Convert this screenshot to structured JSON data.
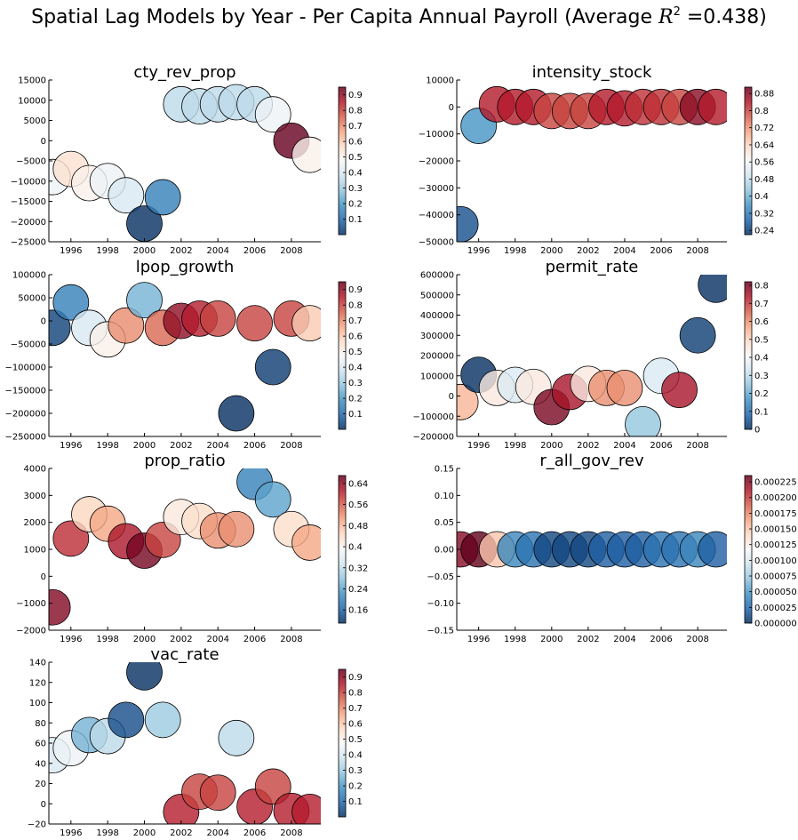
{
  "figure": {
    "title_prefix": "Spatial Lag Models by Year - Per Capita Annual Payroll  (Average ",
    "title_math": "R",
    "title_sup": "2",
    "title_suffix": " =0.438)"
  },
  "colormap": {
    "name": "RdBu_r (alpha 0.8)",
    "stops": [
      "#053061",
      "#2166ac",
      "#4393c3",
      "#92c5de",
      "#d1e5f0",
      "#f7f7f7",
      "#fddbc7",
      "#f4a582",
      "#d6604d",
      "#b2182b",
      "#67001f"
    ]
  },
  "chart_data": [
    {
      "type": "scatter",
      "title": "cty_rev_prop",
      "x": [
        1995,
        1996,
        1997,
        1998,
        1999,
        2000,
        2001,
        2002,
        2003,
        2004,
        2005,
        2006,
        2007,
        2008,
        2009
      ],
      "y": [
        -9000,
        -7000,
        -10500,
        -10000,
        -13500,
        -20500,
        -14000,
        9000,
        8500,
        9000,
        9500,
        9000,
        6500,
        0,
        -3500
      ],
      "color_values": [
        0.45,
        0.55,
        0.5,
        0.45,
        0.4,
        0.0,
        0.15,
        0.35,
        0.35,
        0.35,
        0.35,
        0.35,
        0.45,
        0.95,
        0.5
      ],
      "ylim": [
        -25000,
        15000
      ],
      "yticks": [
        -25000,
        -20000,
        -15000,
        -10000,
        -5000,
        0,
        5000,
        10000,
        15000
      ],
      "ytick_labels": [
        "−25000",
        "−20000",
        "−15000",
        "−10000",
        "−5000",
        "0",
        "5000",
        "10000",
        "15000"
      ],
      "xlim": [
        1994.8,
        2009.6
      ],
      "xticks": [
        1996,
        1998,
        2000,
        2002,
        2004,
        2006,
        2008
      ],
      "colorbar_ticks": [
        0.1,
        0.2,
        0.3,
        0.4,
        0.5,
        0.6,
        0.7,
        0.8,
        0.9
      ],
      "colorbar_range": [
        0.0,
        0.95
      ]
    },
    {
      "type": "scatter",
      "title": "intensity_stock",
      "x": [
        1995,
        1996,
        1997,
        1998,
        1999,
        2000,
        2001,
        2002,
        2003,
        2004,
        2005,
        2006,
        2007,
        2008,
        2009
      ],
      "y": [
        -43500,
        -7000,
        1000,
        0,
        0,
        -1500,
        -1500,
        -1500,
        0,
        -500,
        0,
        0,
        0,
        0,
        0
      ],
      "color_values": [
        0.26,
        0.36,
        0.84,
        0.84,
        0.84,
        0.8,
        0.8,
        0.8,
        0.84,
        0.84,
        0.82,
        0.82,
        0.8,
        0.88,
        0.84
      ],
      "ylim": [
        -50000,
        10000
      ],
      "yticks": [
        -50000,
        -40000,
        -30000,
        -20000,
        -10000,
        0,
        10000
      ],
      "ytick_labels": [
        "−50000",
        "−40000",
        "−30000",
        "−20000",
        "−10000",
        "0",
        "10000"
      ],
      "xlim": [
        1994.8,
        2009.6
      ],
      "xticks": [
        1996,
        1998,
        2000,
        2002,
        2004,
        2006,
        2008
      ],
      "colorbar_ticks": [
        0.24,
        0.32,
        0.4,
        0.48,
        0.56,
        0.64,
        0.72,
        0.8,
        0.88
      ],
      "colorbar_range": [
        0.22,
        0.91
      ]
    },
    {
      "type": "scatter",
      "title": "lpop_growth",
      "x": [
        1995,
        1996,
        1997,
        1998,
        1999,
        2000,
        2001,
        2002,
        2003,
        2004,
        2005,
        2006,
        2007,
        2008,
        2009
      ],
      "y": [
        -15000,
        40000,
        -15000,
        -40000,
        -10000,
        45000,
        -15000,
        0,
        5000,
        5000,
        -200000,
        -5000,
        -100000,
        5000,
        -5000
      ],
      "color_values": [
        0.03,
        0.15,
        0.4,
        0.5,
        0.7,
        0.25,
        0.75,
        0.9,
        0.85,
        0.8,
        0.0,
        0.8,
        0.02,
        0.8,
        0.6
      ],
      "ylim": [
        -250000,
        100000
      ],
      "yticks": [
        -250000,
        -200000,
        -150000,
        -100000,
        -50000,
        0,
        50000,
        100000
      ],
      "ytick_labels": [
        "−250000",
        "−200000",
        "−150000",
        "−100000",
        "−50000",
        "0",
        "50000",
        "100000"
      ],
      "xlim": [
        1994.8,
        2009.6
      ],
      "xticks": [
        1996,
        1998,
        2000,
        2002,
        2004,
        2006,
        2008
      ],
      "colorbar_ticks": [
        0.1,
        0.2,
        0.3,
        0.4,
        0.5,
        0.6,
        0.7,
        0.8,
        0.9
      ],
      "colorbar_range": [
        0.0,
        0.95
      ]
    },
    {
      "type": "scatter",
      "title": "permit_rate",
      "x": [
        1995,
        1996,
        1997,
        1998,
        1999,
        2000,
        2001,
        2002,
        2003,
        2004,
        2005,
        2006,
        2007,
        2008,
        2009
      ],
      "y": [
        -30000,
        105000,
        40000,
        55000,
        45000,
        -55000,
        20000,
        60000,
        40000,
        40000,
        -140000,
        100000,
        30000,
        300000,
        550000
      ],
      "color_values": [
        0.55,
        0.0,
        0.45,
        0.35,
        0.45,
        0.8,
        0.75,
        0.45,
        0.6,
        0.6,
        0.25,
        0.35,
        0.75,
        0.02,
        0.0
      ],
      "ylim": [
        -200000,
        600000
      ],
      "yticks": [
        -200000,
        -100000,
        0,
        100000,
        200000,
        300000,
        400000,
        500000,
        600000
      ],
      "ytick_labels": [
        "−200000",
        "−100000",
        "0",
        "100000",
        "200000",
        "300000",
        "400000",
        "500000",
        "600000"
      ],
      "xlim": [
        1994.8,
        2009.6
      ],
      "xticks": [
        1996,
        1998,
        2000,
        2002,
        2004,
        2006,
        2008
      ],
      "colorbar_ticks": [
        0.0,
        0.1,
        0.2,
        0.3,
        0.4,
        0.5,
        0.6,
        0.7,
        0.8
      ],
      "colorbar_range": [
        0.0,
        0.82
      ]
    },
    {
      "type": "scatter",
      "title": "prop_ratio",
      "x": [
        1995,
        1996,
        1997,
        1998,
        1999,
        2000,
        2001,
        2002,
        2003,
        2004,
        2005,
        2006,
        2007,
        2008,
        2009
      ],
      "y": [
        -1150,
        1400,
        2300,
        1950,
        1300,
        950,
        1350,
        2200,
        2050,
        1700,
        1750,
        3500,
        2850,
        1750,
        1250
      ],
      "color_values": [
        0.65,
        0.6,
        0.45,
        0.5,
        0.62,
        0.66,
        0.58,
        0.42,
        0.44,
        0.52,
        0.52,
        0.2,
        0.24,
        0.44,
        0.5
      ],
      "ylim": [
        -2000,
        4000
      ],
      "yticks": [
        -2000,
        -1000,
        0,
        1000,
        2000,
        3000,
        4000
      ],
      "ytick_labels": [
        "−2000",
        "−1000",
        "0",
        "1000",
        "2000",
        "3000",
        "4000"
      ],
      "xlim": [
        1994.8,
        2009.6
      ],
      "xticks": [
        1996,
        1998,
        2000,
        2002,
        2004,
        2006,
        2008
      ],
      "colorbar_ticks": [
        0.16,
        0.24,
        0.32,
        0.4,
        0.48,
        0.56,
        0.64
      ],
      "colorbar_range": [
        0.11,
        0.67
      ]
    },
    {
      "type": "scatter",
      "title": "r_all_gov_rev",
      "x": [
        1995,
        1996,
        1997,
        1998,
        1999,
        2000,
        2001,
        2002,
        2003,
        2004,
        2005,
        2006,
        2007,
        2008,
        2009
      ],
      "y": [
        0,
        0,
        0,
        0,
        0,
        0,
        0,
        0,
        0,
        0,
        0,
        0,
        0,
        0,
        0
      ],
      "color_values": [
        0.000225,
        0.0,
        0.00015,
        4e-05,
        3e-05,
        1e-05,
        1e-05,
        1e-05,
        2e-05,
        2e-05,
        2e-05,
        3e-05,
        3e-05,
        4e-05,
        2e-05
      ],
      "color_override": {
        "1996": "#5e0019"
      },
      "ylim": [
        -0.15,
        0.15
      ],
      "yticks": [
        -0.15,
        -0.1,
        -0.05,
        0.0,
        0.05,
        0.1,
        0.15
      ],
      "ytick_labels": [
        "−0.15",
        "−0.10",
        "−0.05",
        "0.00",
        "0.05",
        "0.10",
        "0.15"
      ],
      "xlim": [
        1994.8,
        2009.6
      ],
      "xticks": [
        1996,
        1998,
        2000,
        2002,
        2004,
        2006,
        2008
      ],
      "colorbar_ticks": [
        0.0,
        2.5e-05,
        5e-05,
        7.5e-05,
        0.0001,
        0.000125,
        0.00015,
        0.000175,
        0.0002,
        0.000225
      ],
      "colorbar_tick_labels": [
        "0.000000",
        "0.000025",
        "0.000050",
        "0.000075",
        "0.000100",
        "0.000125",
        "0.000150",
        "0.000175",
        "0.000200",
        "0.000225"
      ],
      "colorbar_range": [
        0.0,
        0.000235
      ]
    },
    {
      "type": "scatter",
      "title": "vac_rate",
      "x": [
        1995,
        1996,
        1997,
        1998,
        1999,
        2000,
        2001,
        2002,
        2003,
        2004,
        2005,
        2006,
        2007,
        2008,
        2009
      ],
      "y": [
        48,
        55,
        68,
        67,
        83,
        130,
        83,
        -8,
        12,
        11,
        65,
        -3,
        17,
        -7,
        -8
      ],
      "color_values": [
        0.4,
        0.45,
        0.25,
        0.35,
        0.05,
        0.0,
        0.3,
        0.85,
        0.8,
        0.8,
        0.35,
        0.85,
        0.8,
        0.85,
        0.85
      ],
      "ylim": [
        -20,
        140
      ],
      "yticks": [
        -20,
        0,
        20,
        40,
        60,
        80,
        100,
        120,
        140
      ],
      "ytick_labels": [
        "−20",
        "0",
        "20",
        "40",
        "60",
        "80",
        "100",
        "120",
        "140"
      ],
      "xlim": [
        1994.8,
        2009.6
      ],
      "xticks": [
        1996,
        1998,
        2000,
        2002,
        2004,
        2006,
        2008
      ],
      "colorbar_ticks": [
        0.1,
        0.2,
        0.3,
        0.4,
        0.5,
        0.6,
        0.7,
        0.8,
        0.9
      ],
      "colorbar_range": [
        0.0,
        0.95
      ]
    }
  ]
}
